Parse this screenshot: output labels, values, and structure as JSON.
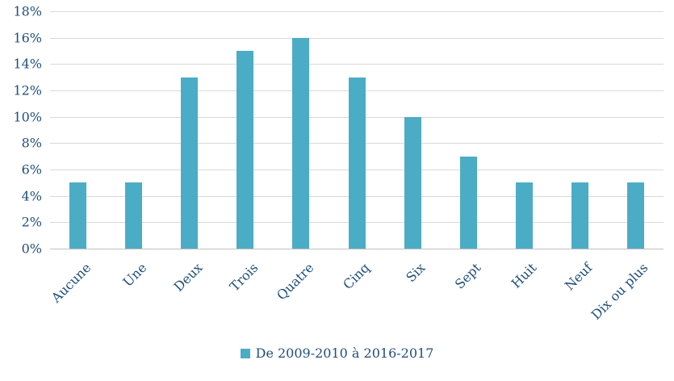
{
  "chart_data": {
    "type": "bar",
    "categories": [
      "Aucune",
      "Une",
      "Deux",
      "Trois",
      "Quatre",
      "Cinq",
      "Six",
      "Sept",
      "Huit",
      "Neuf",
      "Dix ou plus"
    ],
    "values": [
      5,
      5,
      13,
      15,
      16,
      13,
      10,
      7,
      5,
      5,
      5
    ],
    "title": "",
    "xlabel": "",
    "ylabel": "",
    "ylim": [
      0,
      18
    ],
    "ytick_step": 2,
    "ytick_format": "percent",
    "grid": true,
    "legend": {
      "label": "De 2009-2010 à 2016-2017",
      "position": "bottom"
    },
    "colors": {
      "bar": "#4BACC6",
      "text": "#1F4E79",
      "grid": "#D9D9D9"
    }
  }
}
